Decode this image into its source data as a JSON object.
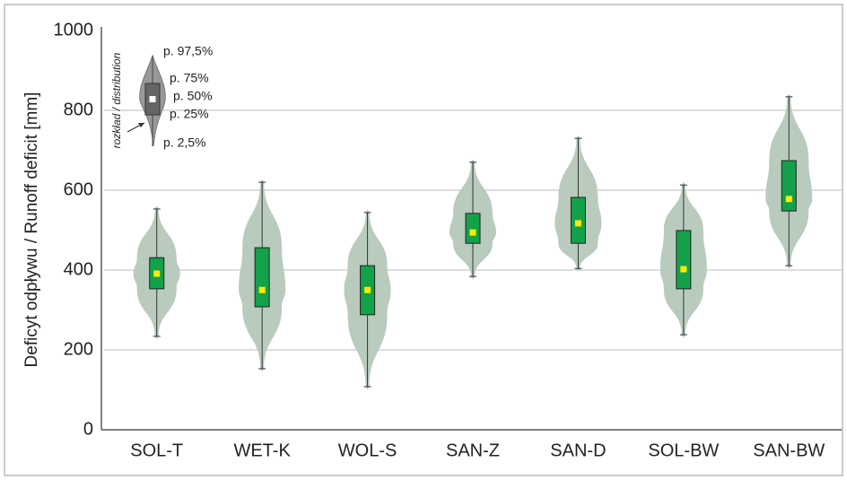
{
  "chart_data": {
    "type": "violin",
    "y_label": "Deficyt odpływu / Runoff deficit [mm]",
    "categories": [
      "SOL-T",
      "WET-K",
      "WOL-S",
      "SAN-Z",
      "SAN-D",
      "SOL-BW",
      "SAN-BW"
    ],
    "whislo": [
      234,
      153,
      108,
      384,
      404,
      238,
      411
    ],
    "q1": [
      353,
      308,
      288,
      467,
      467,
      353,
      548
    ],
    "med": [
      391,
      350,
      350,
      494,
      517,
      402,
      578
    ],
    "q3": [
      431,
      456,
      411,
      542,
      582,
      499,
      674
    ],
    "whishi": [
      553,
      620,
      544,
      670,
      730,
      613,
      834
    ],
    "ylim": [
      0,
      1000
    ],
    "yticks": [
      0,
      200,
      400,
      600,
      800,
      1000
    ],
    "grid": true,
    "violin_color": "#b9cbbd",
    "box_color": "#13a14a",
    "median_color": "#ffec00",
    "legend_title": "rozkład / distribution",
    "legend_labels": [
      "p. 97,5%",
      "p. 75%",
      "p. 50%",
      "p. 25%",
      "p. 2,5%"
    ]
  }
}
